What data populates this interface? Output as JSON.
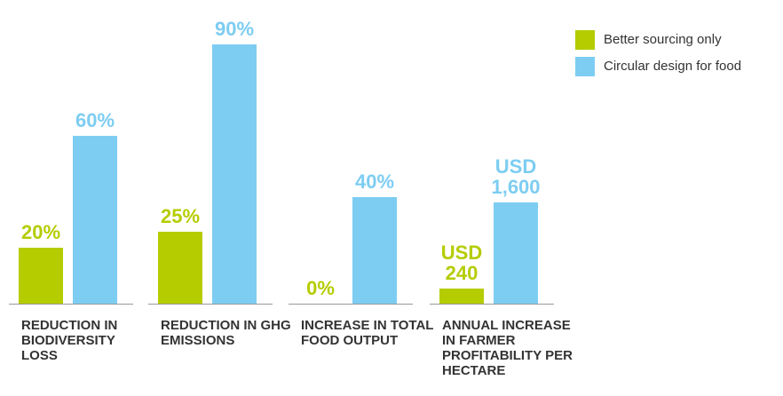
{
  "chart_data": {
    "type": "bar",
    "categories": [
      "REDUCTION IN BIODIVERSITY LOSS",
      "REDUCTION IN GHG EMISSIONS",
      "INCREASE IN TOTAL FOOD OUTPUT",
      "ANNUAL INCREASE IN FARMER PROFITABILITY PER HECTARE"
    ],
    "series": [
      {
        "name": "Better sourcing only",
        "color": "#b5cc00",
        "values": [
          20,
          25,
          0,
          240
        ],
        "value_labels": [
          "20%",
          "25%",
          "0%",
          "USD 240"
        ]
      },
      {
        "name": "Circular design for food",
        "color": "#7dcdf2",
        "values": [
          60,
          90,
          40,
          1600
        ],
        "value_labels": [
          "60%",
          "90%",
          "40%",
          "USD 1,600"
        ]
      }
    ],
    "legend": "top-right"
  }
}
